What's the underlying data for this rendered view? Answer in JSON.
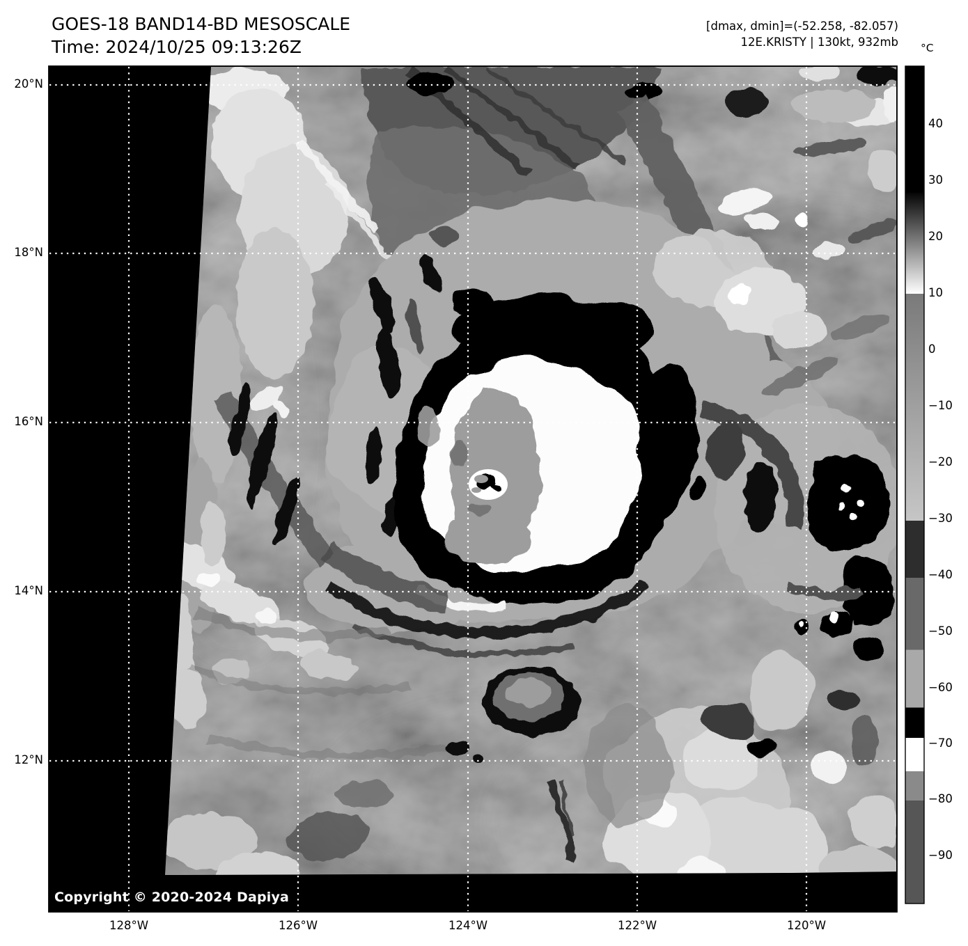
{
  "header": {
    "title": "GOES-18 BAND14-BD MESOSCALE",
    "time_line": "Time: 2024/10/25 09:13:26Z",
    "range_line": "[dmax, dmin]=(-52.258, -82.057)",
    "storm_line": "12E.KRISTY | 130kt, 932mb"
  },
  "colorbar": {
    "unit_label": "°C",
    "ticks": [
      "40",
      "30",
      "20",
      "10",
      "0",
      "−10",
      "−20",
      "−30",
      "−40",
      "−50",
      "−60",
      "−70",
      "−80",
      "−90"
    ],
    "segments": [
      {
        "from": 0.0,
        "to": 0.151,
        "color": "#000000"
      },
      {
        "from": 0.151,
        "to": 0.272,
        "gradient": [
          "#050505",
          "#ffffff"
        ]
      },
      {
        "from": 0.272,
        "to": 0.543,
        "gradient": [
          "#7a7a7a",
          "#c6c6c6"
        ]
      },
      {
        "from": 0.543,
        "to": 0.611,
        "color": "#2d2d2d"
      },
      {
        "from": 0.611,
        "to": 0.697,
        "color": "#696969"
      },
      {
        "from": 0.697,
        "to": 0.766,
        "color": "#a9a9a9"
      },
      {
        "from": 0.766,
        "to": 0.802,
        "color": "#000000"
      },
      {
        "from": 0.802,
        "to": 0.842,
        "color": "#ffffff"
      },
      {
        "from": 0.842,
        "to": 0.877,
        "color": "#8a8a8a"
      },
      {
        "from": 0.877,
        "to": 1.0,
        "color": "#565656"
      }
    ]
  },
  "axes": {
    "lat_labels": [
      "20°N",
      "18°N",
      "16°N",
      "14°N",
      "12°N"
    ],
    "lon_labels": [
      "128°W",
      "126°W",
      "124°W",
      "122°W",
      "120°W"
    ]
  },
  "footer": {
    "copyright": "Copyright © 2020-2024 Dapiya"
  }
}
